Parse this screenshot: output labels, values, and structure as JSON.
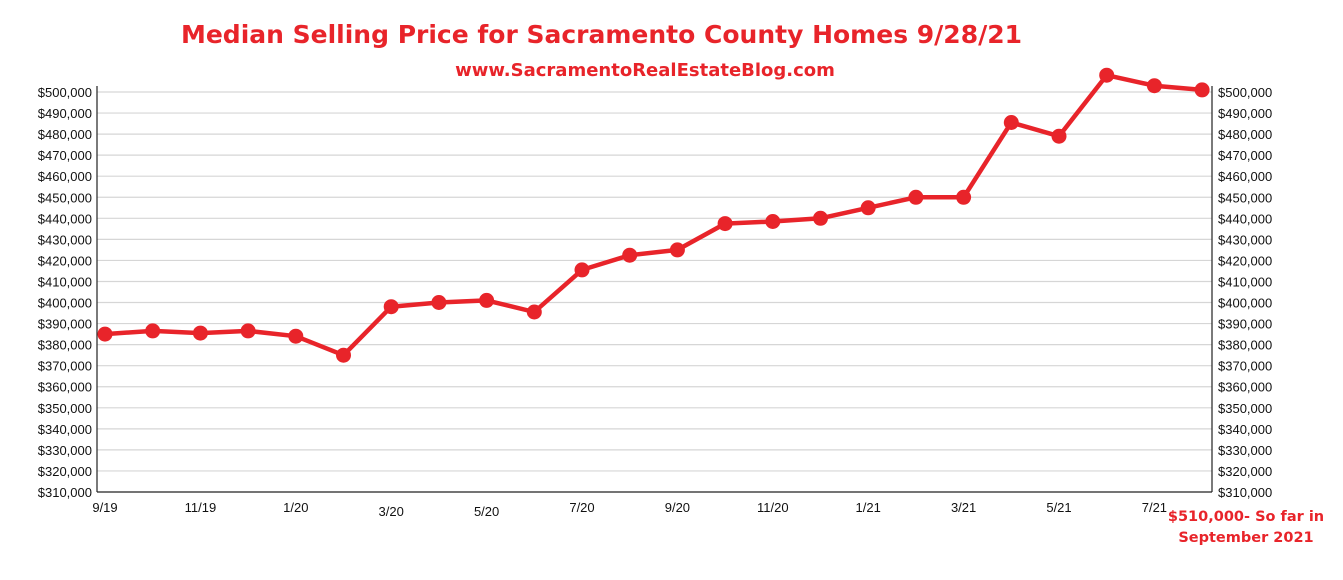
{
  "title": "Median Selling Price for Sacramento County Homes 9/28/21",
  "subtitle": "www.SacramentoRealEstateBlog.com",
  "note": {
    "line1": "$510,000- So far in",
    "line2": "September 2021"
  },
  "colors": {
    "accent": "#e8242a",
    "grid": "#d6d6d6",
    "axis": "#222222"
  },
  "chart_data": {
    "type": "line",
    "title": "Median Selling Price for Sacramento County Homes 9/28/21",
    "xlabel": "",
    "ylabel": "",
    "ylim": [
      310000,
      500000
    ],
    "ytick_labels": [
      "$310,000",
      "$320,000",
      "$330,000",
      "$340,000",
      "$350,000",
      "$360,000",
      "$370,000",
      "$380,000",
      "$390,000",
      "$400,000",
      "$410,000",
      "$420,000",
      "$430,000",
      "$440,000",
      "$450,000",
      "$460,000",
      "$470,000",
      "$480,000",
      "$490,000",
      "$500,000"
    ],
    "x_tick_labels": [
      "9/19",
      "11/19",
      "1/20",
      "3/20",
      "5/20",
      "7/20",
      "9/20",
      "11/20",
      "1/21",
      "3/21",
      "5/21",
      "7/21"
    ],
    "x_tick_months": [
      0,
      2,
      4,
      6,
      8,
      10,
      12,
      14,
      16,
      18,
      20,
      22
    ],
    "grid": true,
    "axes": "left and right",
    "series": [
      {
        "months": [
          0,
          1,
          2,
          3,
          4,
          5,
          6,
          7,
          8,
          9,
          10,
          11,
          12,
          13,
          14,
          15,
          16,
          17,
          18,
          19,
          20,
          21,
          22,
          23
        ],
        "values": [
          385000,
          386500,
          385500,
          386500,
          384000,
          375000,
          398000,
          400000,
          401000,
          395500,
          415500,
          422500,
          425000,
          437500,
          438500,
          440000,
          445000,
          450000,
          450000,
          485500,
          479000,
          508000,
          503000,
          501000
        ]
      }
    ]
  }
}
